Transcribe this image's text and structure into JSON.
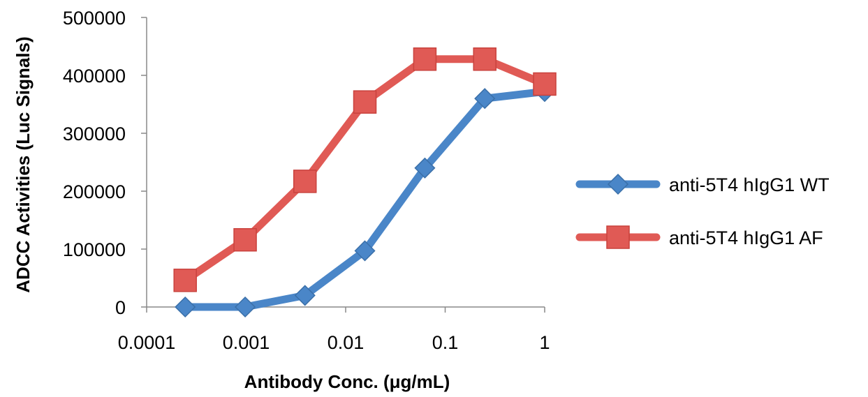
{
  "chart_data": {
    "type": "line",
    "title": "",
    "xlabel": "Antibody Conc. (μg/mL)",
    "ylabel": "ADCC Activities (Luc Signals)",
    "x_scale": "log",
    "xlim": [
      0.0001,
      1
    ],
    "ylim": [
      0,
      500000
    ],
    "x_ticks": [
      0.0001,
      0.001,
      0.01,
      0.1,
      1
    ],
    "x_tick_labels": [
      "0.0001",
      "0.001",
      "0.01",
      "0.1",
      "1"
    ],
    "y_ticks": [
      0,
      100000,
      200000,
      300000,
      400000,
      500000
    ],
    "y_tick_labels": [
      "0",
      "100000",
      "200000",
      "300000",
      "400000",
      "500000"
    ],
    "x": [
      0.000244,
      0.000977,
      0.0039,
      0.0156,
      0.0625,
      0.25,
      1
    ],
    "series": [
      {
        "name": "anti-5T4 hIgG1 WT",
        "color": "#4a86c8",
        "marker": "diamond",
        "values": [
          0,
          0,
          20000,
          97000,
          240000,
          360000,
          372000
        ]
      },
      {
        "name": "anti-5T4 hIgG1 AF",
        "color": "#e05a55",
        "marker": "square",
        "values": [
          46000,
          116000,
          217000,
          354000,
          428000,
          428000,
          385000
        ]
      }
    ],
    "grid": false,
    "legend_position": "right"
  }
}
